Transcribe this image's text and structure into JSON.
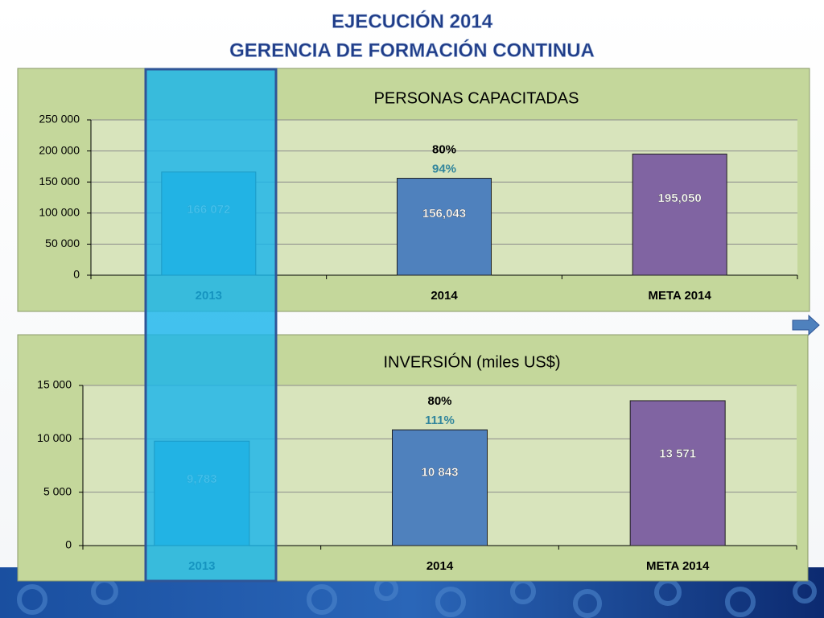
{
  "header": {
    "title": [
      "EJECUCIÓN 2014",
      "GERENCIA DE FORMACIÓN CONTINUA"
    ]
  },
  "chart_data": [
    {
      "type": "bar",
      "title": "PERSONAS CAPACITADAS",
      "categories": [
        "2013",
        "2014",
        "META 2014"
      ],
      "values": [
        166072,
        156043,
        195050
      ],
      "value_labels": [
        "166 072",
        "156,043",
        "195,050"
      ],
      "colors": [
        "#4bacc6",
        "#4f81bd",
        "#8064a2"
      ],
      "ylim": [
        0,
        250000
      ],
      "yticks": [
        0,
        {
          "value": 50000,
          "label": "50 000"
        },
        {
          "value": 100000,
          "label": "100 000"
        },
        {
          "value": 150000,
          "label": "150 000"
        },
        {
          "value": 200000,
          "label": "200 000"
        },
        {
          "value": 250000,
          "label": "250 000"
        }
      ],
      "grid": true,
      "annotations": [
        {
          "text": "80%",
          "color": "#000000"
        },
        {
          "text": "94%",
          "color": "#31859c"
        }
      ]
    },
    {
      "type": "bar",
      "title": "INVERSIÓN (miles US$)",
      "categories": [
        "2013",
        "2014",
        "META 2014"
      ],
      "values": [
        9783,
        10843,
        13571
      ],
      "value_labels": [
        "9,783",
        "10 843",
        "13 571"
      ],
      "colors": [
        "#4bacc6",
        "#4f81bd",
        "#8064a2"
      ],
      "ylim": [
        0,
        15000
      ],
      "yticks": [
        0,
        {
          "value": 5000,
          "label": "5 000"
        },
        {
          "value": 10000,
          "label": "10 000"
        },
        {
          "value": 15000,
          "label": "15 000"
        }
      ],
      "grid": true,
      "annotations": [
        {
          "text": "80%",
          "color": "#000000"
        },
        {
          "text": "111%",
          "color": "#31859c"
        }
      ]
    }
  ]
}
